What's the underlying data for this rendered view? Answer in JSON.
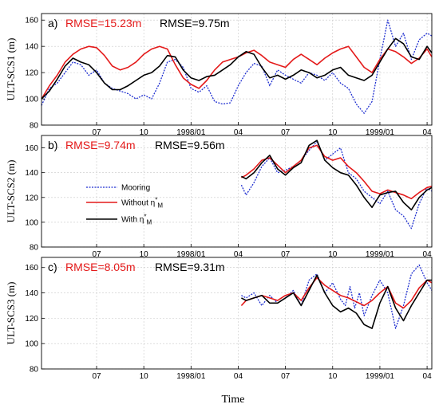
{
  "x_label": "Time",
  "x_ticks": [
    {
      "v": 4.5,
      "label": "07"
    },
    {
      "v": 7.5,
      "label": "10"
    },
    {
      "v": 10.5,
      "label": "1998/01"
    },
    {
      "v": 13.5,
      "label": "04"
    },
    {
      "v": 16.5,
      "label": "07"
    },
    {
      "v": 19.5,
      "label": "10"
    },
    {
      "v": 22.5,
      "label": "1999/01"
    },
    {
      "v": 25.5,
      "label": "04"
    }
  ],
  "legend": {
    "mooring": "Mooring",
    "without_prefix": "Without η",
    "with_prefix": "With η",
    "sup": "*",
    "sub": "M"
  },
  "colors": {
    "mooring": "#1f2fd0",
    "without": "#e41a1a",
    "with": "#000000",
    "rmse_without": "#e41a1a",
    "rmse_with": "#000000"
  },
  "chart_data": [
    {
      "type": "line",
      "panel_label": "a)",
      "ylabel": "ULT-SCS1 (m)",
      "rmse_without": "RMSE=15.23m",
      "rmse_with": "RMSE=9.75m",
      "xlim": [
        1.0,
        25.8
      ],
      "ylim": [
        80,
        165
      ],
      "yticks": [
        80,
        100,
        120,
        140,
        160
      ],
      "grid": true,
      "series": [
        {
          "key": "mooring",
          "x": [
            1.0,
            1.5,
            2.0,
            2.5,
            3.0,
            3.5,
            4.0,
            4.5,
            5.0,
            5.5,
            6.0,
            6.5,
            7.0,
            7.5,
            8.0,
            8.5,
            9.0,
            9.5,
            10.0,
            10.5,
            11.0,
            11.5,
            12.0,
            12.5,
            13.0,
            13.5,
            14.0,
            14.5,
            15.0,
            15.5,
            16.0,
            16.5,
            17.0,
            17.5,
            18.0,
            18.5,
            19.0,
            19.5,
            20.0,
            20.5,
            21.0,
            21.5,
            22.0,
            22.5,
            23.0,
            23.5,
            24.0,
            24.5,
            25.0,
            25.5,
            25.8
          ],
          "y": [
            95,
            108,
            112,
            120,
            128,
            126,
            118,
            122,
            112,
            108,
            106,
            104,
            100,
            103,
            100,
            112,
            128,
            130,
            124,
            108,
            105,
            110,
            98,
            96,
            97,
            110,
            120,
            127,
            125,
            110,
            122,
            118,
            115,
            112,
            120,
            118,
            114,
            120,
            112,
            108,
            96,
            89,
            98,
            130,
            160,
            140,
            150,
            130,
            145,
            150,
            148
          ]
        },
        {
          "key": "without",
          "x": [
            1.0,
            1.5,
            2.0,
            2.5,
            3.0,
            3.5,
            4.0,
            4.5,
            5.0,
            5.5,
            6.0,
            6.5,
            7.0,
            7.5,
            8.0,
            8.5,
            9.0,
            9.5,
            10.0,
            10.5,
            11.0,
            11.5,
            12.0,
            12.5,
            13.0,
            13.5,
            14.0,
            14.5,
            15.0,
            15.5,
            16.0,
            16.5,
            17.0,
            17.5,
            18.0,
            18.5,
            19.0,
            19.5,
            20.0,
            20.5,
            21.0,
            21.5,
            22.0,
            22.5,
            23.0,
            23.5,
            24.0,
            24.5,
            25.0,
            25.5,
            25.8
          ],
          "y": [
            100,
            110,
            118,
            128,
            134,
            138,
            140,
            139,
            133,
            125,
            122,
            124,
            128,
            134,
            138,
            140,
            138,
            126,
            116,
            111,
            108,
            114,
            122,
            128,
            130,
            132,
            135,
            137,
            133,
            128,
            126,
            124,
            130,
            134,
            130,
            126,
            131,
            135,
            138,
            140,
            132,
            124,
            120,
            130,
            138,
            136,
            132,
            127,
            131,
            138,
            132
          ]
        },
        {
          "key": "with",
          "x": [
            1.0,
            1.5,
            2.0,
            2.5,
            3.0,
            3.5,
            4.0,
            4.5,
            5.0,
            5.5,
            6.0,
            6.5,
            7.0,
            7.5,
            8.0,
            8.5,
            9.0,
            9.5,
            10.0,
            10.5,
            11.0,
            11.5,
            12.0,
            12.5,
            13.0,
            13.5,
            14.0,
            14.5,
            15.0,
            15.5,
            16.0,
            16.5,
            17.0,
            17.5,
            18.0,
            18.5,
            19.0,
            19.5,
            20.0,
            20.5,
            21.0,
            21.5,
            22.0,
            22.5,
            23.0,
            23.5,
            24.0,
            24.5,
            25.0,
            25.5,
            25.8
          ],
          "y": [
            100,
            106,
            115,
            125,
            131,
            128,
            126,
            120,
            112,
            107,
            107,
            110,
            114,
            118,
            120,
            125,
            133,
            132,
            122,
            116,
            114,
            117,
            118,
            122,
            126,
            132,
            136,
            134,
            124,
            116,
            118,
            115,
            118,
            122,
            120,
            116,
            118,
            122,
            124,
            118,
            116,
            114,
            118,
            128,
            138,
            146,
            142,
            132,
            130,
            140,
            135
          ]
        }
      ]
    },
    {
      "type": "line",
      "panel_label": "b)",
      "ylabel": "ULT-SCS2 (m)",
      "rmse_without": "RMSE=9.74m",
      "rmse_with": "RMSE=9.56m",
      "xlim": [
        1.0,
        25.8
      ],
      "ylim": [
        80,
        170
      ],
      "yticks": [
        80,
        100,
        120,
        140,
        160
      ],
      "grid": true,
      "series": [
        {
          "key": "mooring",
          "x": [
            13.7,
            14.0,
            14.5,
            15.0,
            15.5,
            16.0,
            16.5,
            17.0,
            17.5,
            18.0,
            18.5,
            19.0,
            19.5,
            20.0,
            20.5,
            21.0,
            21.5,
            22.0,
            22.5,
            23.0,
            23.5,
            24.0,
            24.5,
            25.0,
            25.5,
            25.8
          ],
          "y": [
            130,
            122,
            132,
            145,
            152,
            140,
            142,
            145,
            150,
            158,
            165,
            150,
            155,
            160,
            140,
            135,
            125,
            120,
            115,
            125,
            110,
            105,
            95,
            115,
            128,
            125
          ]
        },
        {
          "key": "without",
          "x": [
            13.7,
            14.0,
            14.5,
            15.0,
            15.5,
            16.0,
            16.5,
            17.0,
            17.5,
            18.0,
            18.5,
            19.0,
            19.5,
            20.0,
            20.5,
            21.0,
            21.5,
            22.0,
            22.5,
            23.0,
            23.5,
            24.0,
            24.5,
            25.0,
            25.5,
            25.8
          ],
          "y": [
            136,
            138,
            143,
            150,
            152,
            146,
            140,
            145,
            150,
            160,
            162,
            153,
            150,
            152,
            145,
            140,
            133,
            125,
            123,
            126,
            124,
            122,
            119,
            124,
            128,
            129
          ]
        },
        {
          "key": "with",
          "x": [
            13.7,
            14.0,
            14.5,
            15.0,
            15.5,
            16.0,
            16.5,
            17.0,
            17.5,
            18.0,
            18.5,
            19.0,
            19.5,
            20.0,
            20.5,
            21.0,
            21.5,
            22.0,
            22.5,
            23.0,
            23.5,
            24.0,
            24.5,
            25.0,
            25.5,
            25.8
          ],
          "y": [
            137,
            135,
            140,
            148,
            154,
            143,
            138,
            144,
            148,
            162,
            166,
            150,
            144,
            140,
            138,
            130,
            120,
            112,
            122,
            124,
            125,
            116,
            110,
            120,
            126,
            128
          ]
        }
      ]
    },
    {
      "type": "line",
      "panel_label": "c)",
      "ylabel": "ULT-SCS3 (m)",
      "rmse_without": "RMSE=8.05m",
      "rmse_with": "RMSE=9.31m",
      "xlim": [
        1.0,
        25.8
      ],
      "ylim": [
        80,
        168
      ],
      "yticks": [
        80,
        100,
        120,
        140,
        160
      ],
      "grid": true,
      "series": [
        {
          "key": "mooring",
          "x": [
            13.7,
            14.0,
            14.5,
            15.0,
            15.5,
            16.0,
            16.5,
            17.0,
            17.5,
            18.0,
            18.5,
            19.0,
            19.5,
            20.0,
            20.3,
            20.6,
            20.9,
            21.2,
            21.5,
            22.0,
            22.5,
            23.0,
            23.5,
            24.0,
            24.5,
            25.0,
            25.5,
            25.8
          ],
          "y": [
            138,
            136,
            140,
            130,
            138,
            132,
            136,
            142,
            130,
            150,
            155,
            140,
            148,
            135,
            130,
            145,
            128,
            140,
            122,
            138,
            150,
            140,
            112,
            130,
            155,
            162,
            148,
            142
          ]
        },
        {
          "key": "without",
          "x": [
            13.7,
            14.0,
            14.5,
            15.0,
            15.5,
            16.0,
            16.5,
            17.0,
            17.5,
            18.0,
            18.5,
            19.0,
            19.5,
            20.0,
            20.5,
            21.0,
            21.5,
            22.0,
            22.5,
            23.0,
            23.5,
            24.0,
            24.5,
            25.0,
            25.5,
            25.8
          ],
          "y": [
            130,
            134,
            136,
            138,
            136,
            134,
            138,
            140,
            134,
            144,
            152,
            146,
            142,
            138,
            136,
            133,
            130,
            134,
            140,
            145,
            132,
            128,
            134,
            144,
            150,
            148
          ]
        },
        {
          "key": "with",
          "x": [
            13.7,
            14.0,
            14.5,
            15.0,
            15.5,
            16.0,
            16.5,
            17.0,
            17.5,
            18.0,
            18.5,
            19.0,
            19.5,
            20.0,
            20.5,
            21.0,
            21.5,
            22.0,
            22.5,
            23.0,
            23.5,
            24.0,
            24.5,
            25.0,
            25.5,
            25.8
          ],
          "y": [
            136,
            134,
            136,
            138,
            132,
            132,
            136,
            140,
            130,
            142,
            154,
            140,
            130,
            125,
            128,
            124,
            115,
            112,
            132,
            145,
            128,
            118,
            130,
            140,
            150,
            150
          ]
        }
      ]
    }
  ]
}
